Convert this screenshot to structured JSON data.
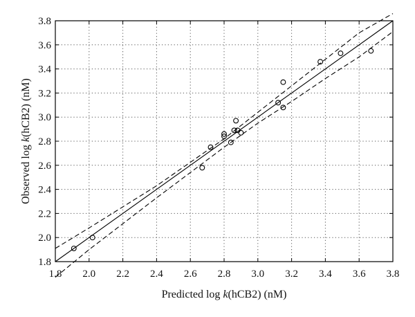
{
  "chart_data": {
    "type": "scatter",
    "xlim": [
      1.8,
      3.8
    ],
    "ylim": [
      1.8,
      3.8
    ],
    "xticks": [
      "1.8",
      "2.0",
      "2.2",
      "2.4",
      "2.6",
      "2.8",
      "3.0",
      "3.2",
      "3.4",
      "3.6",
      "3.8"
    ],
    "yticks": [
      "1.8",
      "2.0",
      "2.2",
      "2.4",
      "2.6",
      "2.8",
      "3.0",
      "3.2",
      "3.4",
      "3.6",
      "3.8"
    ],
    "xlabel": {
      "pre": "Predicted log ",
      "ital": "k",
      "post": "(hCB2) (nM)"
    },
    "ylabel": {
      "pre": "Observed log ",
      "ital": "k",
      "post": "(hCB2) (nM)"
    },
    "grid": true,
    "series": [
      {
        "marker": "open-circle",
        "points": [
          [
            1.91,
            1.91
          ],
          [
            2.02,
            2.0
          ],
          [
            2.67,
            2.58
          ],
          [
            2.72,
            2.75
          ],
          [
            2.8,
            2.84
          ],
          [
            2.8,
            2.86
          ],
          [
            2.84,
            2.79
          ],
          [
            2.86,
            2.89
          ],
          [
            2.87,
            2.97
          ],
          [
            2.88,
            2.89
          ],
          [
            2.9,
            2.87
          ],
          [
            3.12,
            3.12
          ],
          [
            3.15,
            3.08
          ],
          [
            3.15,
            3.29
          ],
          [
            3.37,
            3.46
          ],
          [
            3.49,
            3.53
          ],
          [
            3.67,
            3.55
          ]
        ]
      }
    ],
    "fit_line": {
      "x": [
        1.8,
        3.8
      ],
      "y": [
        1.8,
        3.8
      ]
    },
    "confidence_band": {
      "upper": [
        [
          1.8,
          1.91
        ],
        [
          2.0,
          2.08
        ],
        [
          2.4,
          2.43
        ],
        [
          2.8,
          2.82
        ],
        [
          3.0,
          3.04
        ],
        [
          3.2,
          3.26
        ],
        [
          3.4,
          3.48
        ],
        [
          3.6,
          3.7
        ],
        [
          3.8,
          3.86
        ]
      ],
      "lower": [
        [
          1.8,
          1.67
        ],
        [
          2.0,
          1.9
        ],
        [
          2.4,
          2.33
        ],
        [
          2.8,
          2.75
        ],
        [
          3.0,
          2.95
        ],
        [
          3.2,
          3.13
        ],
        [
          3.4,
          3.32
        ],
        [
          3.6,
          3.5
        ],
        [
          3.8,
          3.71
        ]
      ]
    }
  }
}
